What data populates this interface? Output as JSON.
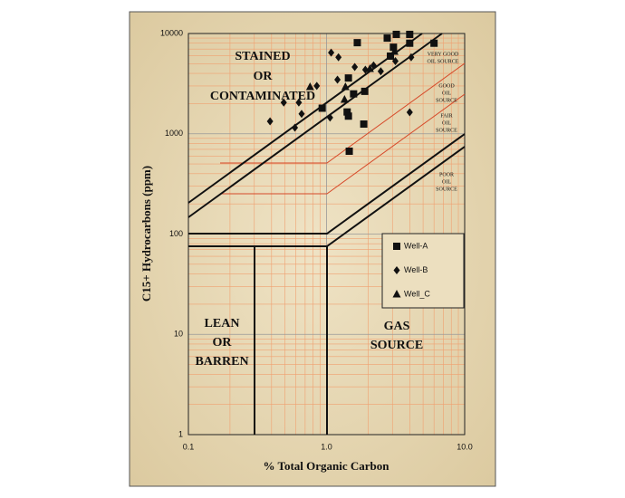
{
  "chart_data": {
    "type": "scatter",
    "x_label": "% Total Organic Carbon",
    "y_label": "C15+ Hydrocarbons (ppm)",
    "log_x": true,
    "log_y": true,
    "grid": true,
    "xlim": [
      0.1,
      10
    ],
    "ylim": [
      1,
      10000
    ],
    "xticks": [
      {
        "value": 0.1,
        "label": "0.1"
      },
      {
        "value": 1,
        "label": "1.0"
      },
      {
        "value": 10,
        "label": "10.0"
      }
    ],
    "yticks": [
      1,
      10,
      100,
      1000,
      10000
    ],
    "regions": [
      {
        "lines": [
          "STAINED",
          "OR",
          "CONTAMINATED"
        ]
      },
      {
        "lines": [
          "LEAN",
          "OR",
          "BARREN"
        ]
      },
      {
        "lines": [
          "GAS",
          "SOURCE"
        ]
      },
      {
        "lines": [
          "VERY GOOD",
          "OIL SOURCE"
        ]
      },
      {
        "lines": [
          "GOOD",
          "OIL",
          "SOURCE"
        ]
      },
      {
        "lines": [
          "FAIR",
          "OIL",
          "SOURCE"
        ]
      },
      {
        "lines": [
          "POOR",
          "OIL",
          "SOURCE"
        ]
      }
    ],
    "series": [
      {
        "name": "Well-A",
        "marker": "square",
        "color": "#111111",
        "x": [
          1.67,
          2.75,
          3.2,
          4.0,
          6.0,
          3.05,
          4.0,
          0.93,
          1.44,
          1.89,
          1.57,
          1.41,
          1.44,
          1.86,
          1.46,
          2.9
        ],
        "values": [
          8100,
          9000,
          9800,
          9800,
          8000,
          7300,
          8000,
          1800,
          3600,
          2650,
          2500,
          1650,
          1500,
          1250,
          670,
          5950
        ]
      },
      {
        "name": "Well-B",
        "marker": "diamond",
        "color": "#111111",
        "x": [
          0.39,
          0.49,
          0.63,
          0.59,
          0.66,
          1.06,
          0.85,
          1.08,
          1.22,
          1.6,
          1.91,
          2.19,
          2.47,
          4.1,
          4.0,
          1.2,
          3.15
        ],
        "values": [
          1330,
          2050,
          2050,
          1150,
          1580,
          1450,
          3000,
          6450,
          5800,
          4630,
          4350,
          4800,
          4200,
          5800,
          1640,
          3460,
          5300
        ]
      },
      {
        "name": "Well_C",
        "marker": "triangle",
        "color": "#111111",
        "x": [
          0.76,
          1.35,
          3.1,
          1.37,
          2.06
        ],
        "values": [
          2930,
          2190,
          6600,
          2930,
          4450
        ]
      }
    ]
  }
}
